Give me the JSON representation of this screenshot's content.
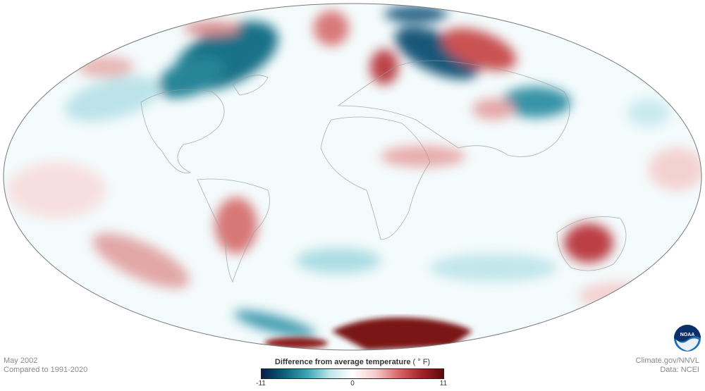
{
  "meta": {
    "month_year": "May 2002",
    "baseline": "Compared to 1991-2020",
    "source_site": "Climate.gov/NNVL",
    "data_source": "Data: NCEI"
  },
  "legend": {
    "title": "Difference from average temperature",
    "unit": "( ° F)",
    "min_label": "-11",
    "mid_label": "0",
    "max_label": "11",
    "colors": [
      "#071d49",
      "#0d5f7c",
      "#3aa5b5",
      "#bfe6ea",
      "#ffffff",
      "#f5cccc",
      "#d86a6a",
      "#a4242a",
      "#5a0a0a"
    ]
  },
  "logo": {
    "text": "NOAA",
    "icon": "noaa-logo-icon"
  }
}
